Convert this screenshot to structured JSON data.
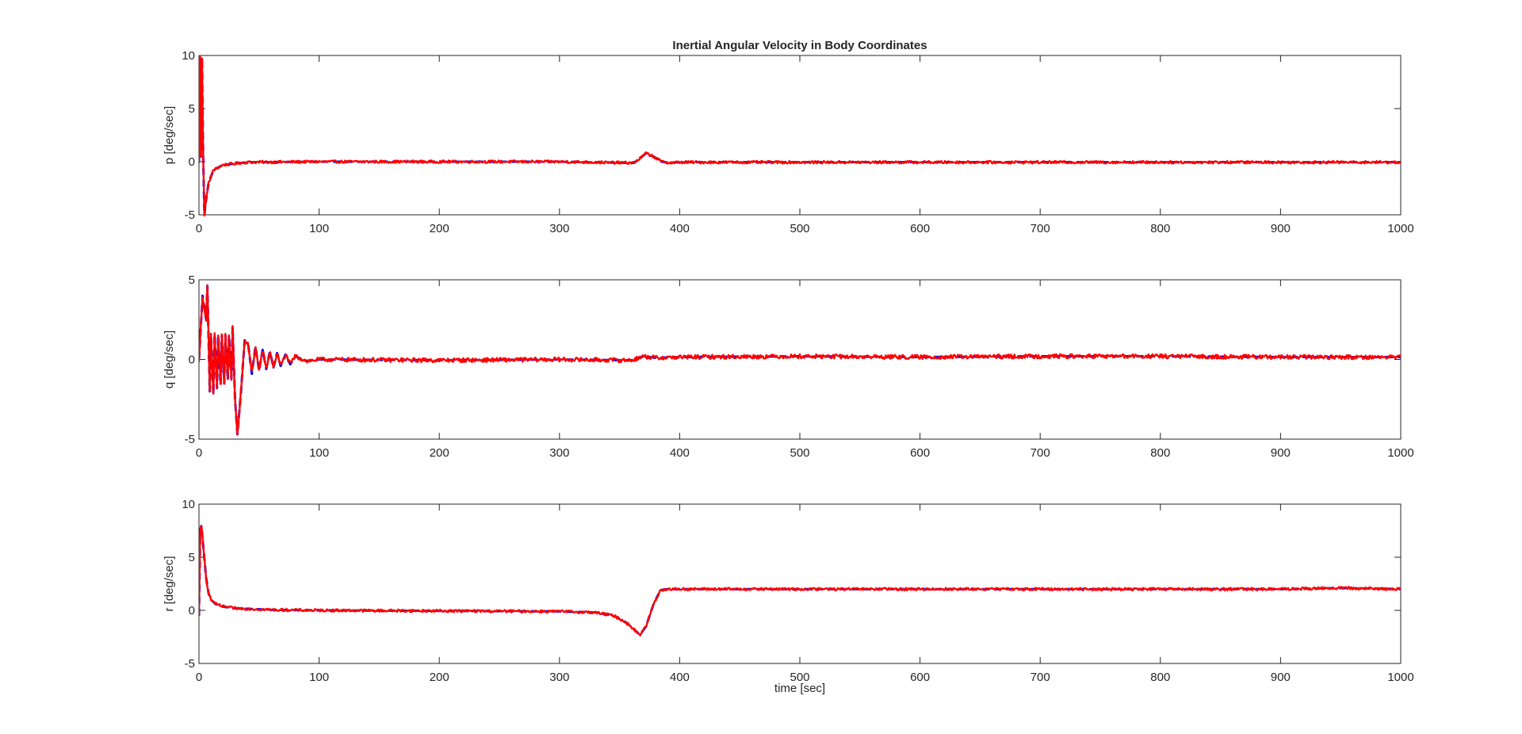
{
  "figure": {
    "title": "Inertial Angular Velocity in Body Coordinates",
    "xlabel": "time [sec]"
  },
  "colors": {
    "measured": "#ff0000",
    "reference": "#0000ff",
    "axes": "#262626",
    "background": "#ffffff"
  },
  "chart_data": [
    {
      "type": "line",
      "title": "Inertial Angular Velocity in Body Coordinates",
      "xlabel": "",
      "ylabel": "p [deg/sec]",
      "xlim": [
        0,
        1000
      ],
      "ylim": [
        -5,
        10
      ],
      "xticks": [
        0,
        100,
        200,
        300,
        400,
        500,
        600,
        700,
        800,
        900,
        1000
      ],
      "yticks": [
        -5,
        0,
        5,
        10
      ],
      "grid": false,
      "noise": 0.12,
      "series": [
        {
          "style": "dashed",
          "color": "#0000ff",
          "x": [
            0,
            0.8,
            1.5,
            2.5,
            3.5,
            4.5,
            6,
            8,
            12,
            20,
            40,
            100,
            200,
            300,
            355,
            362,
            368,
            372,
            378,
            385,
            392,
            400,
            500,
            600,
            700,
            800,
            900,
            1000
          ],
          "y": [
            0,
            10,
            0.5,
            9.8,
            0.5,
            -5,
            -3.5,
            -2,
            -0.8,
            -0.3,
            -0.05,
            0,
            0,
            0,
            -0.1,
            -0.1,
            0.4,
            0.8,
            0.5,
            0,
            -0.1,
            -0.05,
            -0.05,
            -0.05,
            -0.05,
            -0.05,
            -0.05,
            -0.05
          ]
        },
        {
          "style": "solid",
          "color": "#ff0000",
          "x": [
            0,
            0.8,
            1.5,
            2.5,
            3.5,
            4.5,
            6,
            8,
            12,
            20,
            40,
            100,
            200,
            300,
            355,
            362,
            368,
            372,
            378,
            385,
            392,
            400,
            500,
            600,
            700,
            800,
            900,
            1000
          ],
          "y": [
            0,
            10,
            0.5,
            9.8,
            0.5,
            -5,
            -3.5,
            -2,
            -0.8,
            -0.3,
            -0.05,
            0,
            0,
            0,
            -0.1,
            -0.1,
            0.4,
            0.8,
            0.5,
            0,
            -0.1,
            -0.05,
            -0.05,
            -0.05,
            -0.05,
            -0.05,
            -0.05,
            -0.05
          ]
        }
      ]
    },
    {
      "type": "line",
      "title": "",
      "xlabel": "",
      "ylabel": "q [deg/sec]",
      "xlim": [
        0,
        1000
      ],
      "ylim": [
        -5,
        5
      ],
      "xticks": [
        0,
        100,
        200,
        300,
        400,
        500,
        600,
        700,
        800,
        900,
        1000
      ],
      "yticks": [
        -5,
        0,
        5
      ],
      "grid": false,
      "noise": 0.13,
      "series": [
        {
          "style": "dashed",
          "color": "#0000ff",
          "x": [
            0,
            3,
            6,
            7,
            9,
            10,
            12,
            13,
            15,
            16,
            18,
            19,
            21,
            22,
            24,
            25,
            27,
            28,
            30,
            32,
            35,
            38,
            41,
            44,
            47,
            50,
            53,
            56,
            59,
            62,
            65,
            68,
            72,
            76,
            80,
            90,
            100,
            200,
            300,
            360,
            370,
            380,
            400,
            500,
            600,
            700,
            800,
            900,
            1000
          ],
          "y": [
            0,
            4,
            2.5,
            4.6,
            -2,
            1.5,
            -2.2,
            1.6,
            -1.8,
            1.5,
            -1.6,
            1.5,
            -1.5,
            1.5,
            -1.3,
            1.5,
            -1.2,
            2,
            -2.5,
            -4.7,
            -2,
            1.2,
            0.9,
            -0.9,
            0.8,
            -0.7,
            0.6,
            -0.6,
            0.5,
            -0.5,
            0.4,
            -0.4,
            0.3,
            -0.3,
            0.2,
            -0.1,
            0,
            -0.05,
            0,
            -0.05,
            0.2,
            0.1,
            0.15,
            0.2,
            0.15,
            0.2,
            0.2,
            0.15,
            0.15
          ]
        },
        {
          "style": "solid",
          "color": "#ff0000",
          "x": [
            0,
            3,
            6,
            7,
            9,
            10,
            12,
            13,
            15,
            16,
            18,
            19,
            21,
            22,
            24,
            25,
            27,
            28,
            30,
            32,
            35,
            38,
            41,
            44,
            47,
            50,
            53,
            56,
            59,
            62,
            65,
            68,
            72,
            76,
            80,
            90,
            100,
            200,
            300,
            360,
            370,
            380,
            400,
            500,
            600,
            700,
            800,
            900,
            1000
          ],
          "y": [
            0,
            4,
            2.5,
            4.6,
            -2,
            1.5,
            -2.2,
            1.6,
            -1.8,
            1.5,
            -1.6,
            1.5,
            -1.5,
            1.5,
            -1.3,
            1.5,
            -1.2,
            2,
            -2.5,
            -4.7,
            -2,
            1.2,
            0.9,
            -0.9,
            0.8,
            -0.7,
            0.6,
            -0.6,
            0.5,
            -0.5,
            0.4,
            -0.4,
            0.3,
            -0.3,
            0.2,
            -0.1,
            0,
            -0.05,
            0,
            -0.05,
            0.2,
            0.1,
            0.15,
            0.2,
            0.15,
            0.2,
            0.2,
            0.15,
            0.15
          ]
        }
      ]
    },
    {
      "type": "line",
      "title": "",
      "xlabel": "time [sec]",
      "ylabel": "r [deg/sec]",
      "xlim": [
        0,
        1000
      ],
      "ylim": [
        -5,
        10
      ],
      "xticks": [
        0,
        100,
        200,
        300,
        400,
        500,
        600,
        700,
        800,
        900,
        1000
      ],
      "yticks": [
        -5,
        0,
        5,
        10
      ],
      "grid": false,
      "noise": 0.12,
      "series": [
        {
          "style": "dashed",
          "color": "#0000ff",
          "x": [
            0,
            1,
            2,
            4,
            6,
            8,
            10,
            14,
            20,
            30,
            60,
            100,
            200,
            300,
            330,
            345,
            355,
            362,
            367,
            372,
            378,
            384,
            390,
            400,
            500,
            600,
            700,
            800,
            900,
            950,
            1000
          ],
          "y": [
            -0.5,
            7.5,
            8,
            5.5,
            3,
            1.6,
            1,
            0.6,
            0.35,
            0.2,
            0.05,
            0,
            -0.05,
            -0.1,
            -0.2,
            -0.5,
            -1.1,
            -1.8,
            -2.3,
            -1.5,
            0.5,
            1.9,
            2,
            2,
            2,
            2,
            2,
            2,
            2,
            2.1,
            2
          ]
        },
        {
          "style": "solid",
          "color": "#ff0000",
          "x": [
            0,
            1,
            2,
            4,
            6,
            8,
            10,
            14,
            20,
            30,
            60,
            100,
            200,
            300,
            330,
            345,
            355,
            362,
            367,
            372,
            378,
            384,
            390,
            400,
            500,
            600,
            700,
            800,
            900,
            950,
            1000
          ],
          "y": [
            -0.5,
            7.5,
            8,
            5.5,
            3,
            1.6,
            1,
            0.6,
            0.35,
            0.2,
            0.05,
            0,
            -0.05,
            -0.1,
            -0.2,
            -0.5,
            -1.1,
            -1.8,
            -2.3,
            -1.5,
            0.5,
            1.9,
            2,
            2,
            2,
            2,
            2,
            2,
            2,
            2.1,
            2
          ]
        }
      ]
    }
  ]
}
